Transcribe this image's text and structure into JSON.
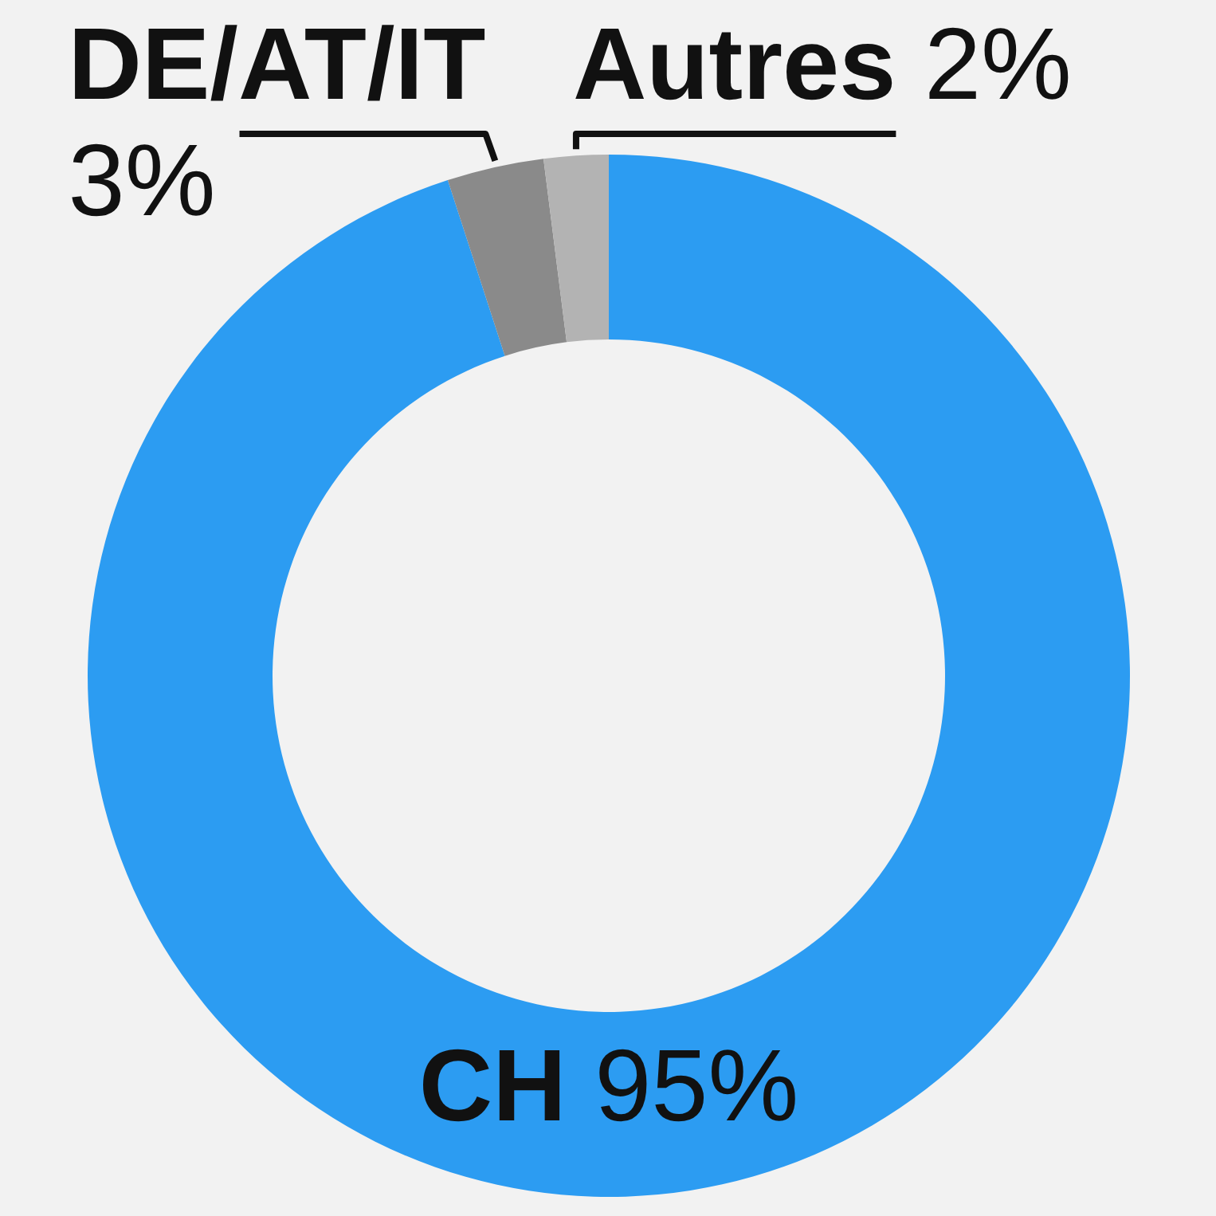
{
  "chart_data": {
    "type": "donut",
    "categories": [
      "CH",
      "DE/AT/IT",
      "Autres"
    ],
    "values": [
      95,
      3,
      2
    ],
    "colors": [
      "#2c9cf2",
      "#8a8a8a",
      "#b3b3b3"
    ],
    "value_labels": [
      "95%",
      "3%",
      "2%"
    ]
  }
}
